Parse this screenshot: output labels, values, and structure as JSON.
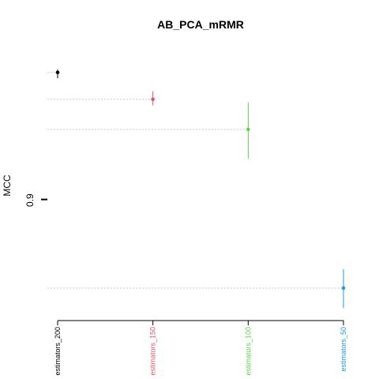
{
  "chart_data": {
    "type": "scatter",
    "title": "AB_PCA_mRMR",
    "xlabel": "",
    "ylabel": "MCC",
    "categories": [
      "estimators_200",
      "estimators_150",
      "estimators_100",
      "estimators_50"
    ],
    "colors": [
      "#000000",
      "#DF536B",
      "#61D04F",
      "#2297E6"
    ],
    "values": [
      0.9582,
      0.946,
      0.9323,
      0.86
    ],
    "error_low": [
      0.9556,
      0.9432,
      0.9189,
      0.8509
    ],
    "error_high": [
      0.9596,
      0.9497,
      0.9446,
      0.8686
    ],
    "yticks": [
      0.9
    ],
    "ytick_labels": [
      "0.9"
    ],
    "ylim": [
      0.8452,
      0.9682
    ],
    "guide_lines": "dotted-horizontal-to-y-axis",
    "grid": false,
    "legend": "none"
  }
}
